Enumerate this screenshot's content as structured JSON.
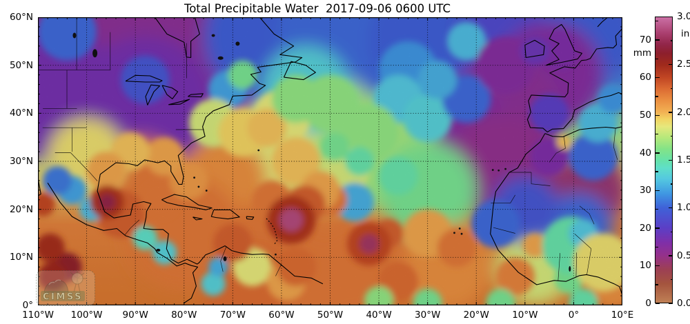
{
  "title": "Total Precipitable Water  2017-09-06 0600 UTC",
  "watermark": {
    "label": "CIMSS"
  },
  "chart_data": {
    "type": "heatmap",
    "title": "Total Precipitable Water",
    "timestamp_utc": "2017-09-06 0600 UTC",
    "projection": "equirectangular lat-lon",
    "lon_range_deg": [
      -110,
      10
    ],
    "lat_range_deg": [
      0,
      60
    ],
    "grid": "dotted black lines every 10 degrees",
    "x_tick_labels": [
      "110°W",
      "100°W",
      "90°W",
      "80°W",
      "70°W",
      "60°W",
      "50°W",
      "40°W",
      "30°W",
      "20°W",
      "10°W",
      "0°",
      "10°E"
    ],
    "y_tick_labels": [
      "60°N",
      "50°N",
      "40°N",
      "30°N",
      "20°N",
      "10°N",
      "0°"
    ],
    "colorbar": {
      "position": "right",
      "left_unit_label": "mm",
      "right_unit_label": "in",
      "mm_tick_values": [
        0,
        10,
        20,
        30,
        40,
        50,
        60,
        70
      ],
      "in_tick_labels": [
        "0.0",
        "0.5",
        "1.0",
        "1.5",
        "2.0",
        "2.5",
        "3.0"
      ],
      "value_range_mm": [
        0,
        76.2
      ],
      "color_stops_mm": [
        [
          0,
          "#bf8055"
        ],
        [
          5,
          "#a4543e"
        ],
        [
          9,
          "#9c3f55"
        ],
        [
          12.7,
          "#94308c"
        ],
        [
          16,
          "#7f2fa8"
        ],
        [
          20,
          "#5b3fc6"
        ],
        [
          25.4,
          "#3f62d8"
        ],
        [
          29,
          "#3f96e2"
        ],
        [
          33,
          "#54c8e0"
        ],
        [
          36,
          "#5fdfc8"
        ],
        [
          38.1,
          "#67e2a8"
        ],
        [
          41,
          "#83e387"
        ],
        [
          44,
          "#b4e87b"
        ],
        [
          47,
          "#e6e87c"
        ],
        [
          49,
          "#f2d463"
        ],
        [
          50.8,
          "#f2b254"
        ],
        [
          54,
          "#ea8f41"
        ],
        [
          57,
          "#dc6c33"
        ],
        [
          60,
          "#c24724"
        ],
        [
          63.5,
          "#a02a1c"
        ],
        [
          66.5,
          "#8d1f2c"
        ],
        [
          69,
          "#92264a"
        ],
        [
          72,
          "#ab4070"
        ],
        [
          76.2,
          "#cb70a5"
        ]
      ]
    },
    "field_maxima_mm": [
      {
        "lon": -58,
        "lat": 18,
        "mm": 73
      },
      {
        "lon": -42,
        "lat": 13,
        "mm": 71
      },
      {
        "lon": -96,
        "lat": 21.5,
        "mm": 69
      },
      {
        "lon": -104,
        "lat": 8,
        "mm": 66
      }
    ],
    "field_blobs": [
      [
        -97,
        52,
        22,
        14
      ],
      [
        -78,
        52,
        16,
        14
      ],
      [
        -107,
        44,
        14,
        17
      ],
      [
        -88,
        42,
        14,
        17
      ],
      [
        -62,
        56,
        14,
        25
      ],
      [
        -45,
        56,
        16,
        26
      ],
      [
        -28,
        55,
        14,
        25
      ],
      [
        -12,
        56,
        12,
        22
      ],
      [
        3,
        57,
        10,
        25
      ],
      [
        -5,
        48,
        11,
        15
      ],
      [
        -14,
        40,
        12,
        14
      ],
      [
        -25,
        34,
        13,
        15
      ],
      [
        -15,
        29,
        11,
        13
      ],
      [
        3,
        24,
        8,
        11
      ],
      [
        -52,
        37,
        12,
        44
      ],
      [
        -40,
        32,
        12,
        43
      ],
      [
        -30,
        24,
        10,
        40
      ],
      [
        -62,
        33,
        9,
        47
      ],
      [
        -72,
        26,
        9,
        54
      ],
      [
        -89,
        26,
        9,
        56
      ],
      [
        -100,
        31,
        8,
        48
      ],
      [
        -80,
        15,
        12,
        56
      ],
      [
        -62,
        11,
        11,
        56
      ],
      [
        -44,
        8,
        10,
        56
      ],
      [
        -26,
        8,
        9,
        54
      ],
      [
        -66,
        3,
        10,
        57
      ],
      [
        -52,
        3,
        8,
        56
      ],
      [
        -55,
        45,
        9,
        34
      ],
      [
        -8,
        8,
        8,
        46
      ],
      [
        1,
        16.5,
        7,
        26
      ],
      [
        -10,
        20,
        7,
        24
      ],
      [
        -104,
        57,
        6,
        26
      ],
      [
        -88,
        47,
        5,
        24
      ],
      [
        -71,
        45,
        4,
        30
      ],
      [
        -68,
        48,
        3,
        40
      ],
      [
        -74,
        38,
        5,
        46
      ],
      [
        -68,
        36,
        5,
        49
      ],
      [
        -60,
        39,
        6,
        47
      ],
      [
        -63,
        37,
        4,
        50
      ],
      [
        -50,
        42,
        6,
        42
      ],
      [
        -57,
        43,
        5,
        42
      ],
      [
        -34,
        49,
        6,
        29
      ],
      [
        -36,
        43,
        5,
        33
      ],
      [
        -30,
        39,
        5,
        34
      ],
      [
        -22,
        43,
        5,
        26
      ],
      [
        -28,
        47,
        4,
        31
      ],
      [
        -22,
        55,
        4,
        32
      ],
      [
        -14,
        50,
        6,
        15
      ],
      [
        -42,
        36,
        6,
        42
      ],
      [
        -47,
        28,
        5,
        46
      ],
      [
        -36,
        27,
        4,
        38
      ],
      [
        -49,
        33,
        3,
        40
      ],
      [
        -44,
        30,
        3,
        38
      ],
      [
        -45,
        21.5,
        4,
        31
      ],
      [
        -30,
        15,
        5,
        52
      ],
      [
        -50,
        22,
        3.5,
        56
      ],
      [
        -16,
        17,
        5,
        26
      ],
      [
        -5,
        31,
        4,
        16
      ],
      [
        -5,
        40,
        4,
        20
      ],
      [
        4,
        31,
        5,
        26
      ],
      [
        -2,
        34,
        1.5,
        50
      ],
      [
        5,
        38,
        4,
        32
      ],
      [
        8,
        43,
        3,
        29
      ],
      [
        -3,
        53,
        4,
        16
      ],
      [
        -8,
        53,
        3,
        18
      ],
      [
        -93,
        19,
        5,
        58
      ],
      [
        -85,
        22,
        4,
        56
      ],
      [
        -79,
        26,
        4,
        53
      ],
      [
        -84,
        31,
        4,
        52
      ],
      [
        -91,
        32,
        4,
        50
      ],
      [
        -96,
        28,
        4,
        52
      ],
      [
        -103,
        24,
        3,
        30
      ],
      [
        -99,
        20,
        2.5,
        32
      ],
      [
        -106,
        26,
        3,
        27
      ],
      [
        -88,
        14,
        2.5,
        36
      ],
      [
        -84,
        11,
        2.5,
        34
      ],
      [
        -74,
        4.5,
        2.5,
        34
      ],
      [
        -73,
        8,
        2,
        31
      ],
      [
        -66,
        8,
        4,
        47
      ],
      [
        -59,
        5,
        4,
        52
      ],
      [
        -70,
        13,
        4,
        58
      ],
      [
        -57,
        8,
        4,
        57
      ],
      [
        -36,
        5,
        4,
        57
      ],
      [
        -24,
        12,
        4,
        56
      ],
      [
        -12,
        6,
        4,
        55
      ],
      [
        -1,
        5.5,
        3,
        40
      ],
      [
        8,
        4,
        4,
        54
      ],
      [
        -8,
        12.5,
        2.5,
        52
      ],
      [
        -0.5,
        12.5,
        6,
        38
      ],
      [
        2,
        15,
        3,
        33
      ],
      [
        6,
        9,
        6,
        48
      ],
      [
        -57,
        30,
        5,
        50
      ],
      [
        -52,
        24,
        4,
        52
      ],
      [
        -62,
        22,
        4,
        56
      ],
      [
        -55,
        21,
        4,
        58
      ],
      [
        -38,
        15,
        3,
        58
      ],
      [
        -40,
        1,
        3,
        42
      ],
      [
        -30,
        0.5,
        3,
        40
      ],
      [
        -15,
        0.5,
        3,
        40
      ],
      [
        2,
        0.5,
        3,
        38
      ],
      [
        -58,
        17.8,
        5,
        62
      ],
      [
        -58,
        17.8,
        2.4,
        73
      ],
      [
        -42,
        12.8,
        4.5,
        60
      ],
      [
        -42,
        12.8,
        2,
        71
      ],
      [
        -95.8,
        21.5,
        3.5,
        62
      ],
      [
        -95.8,
        21.5,
        1.7,
        69
      ],
      [
        -104,
        8,
        3,
        66
      ],
      [
        -107.5,
        12,
        3,
        63
      ],
      [
        -109,
        21,
        2.5,
        60
      ],
      [
        -107,
        6,
        3,
        64
      ]
    ]
  }
}
